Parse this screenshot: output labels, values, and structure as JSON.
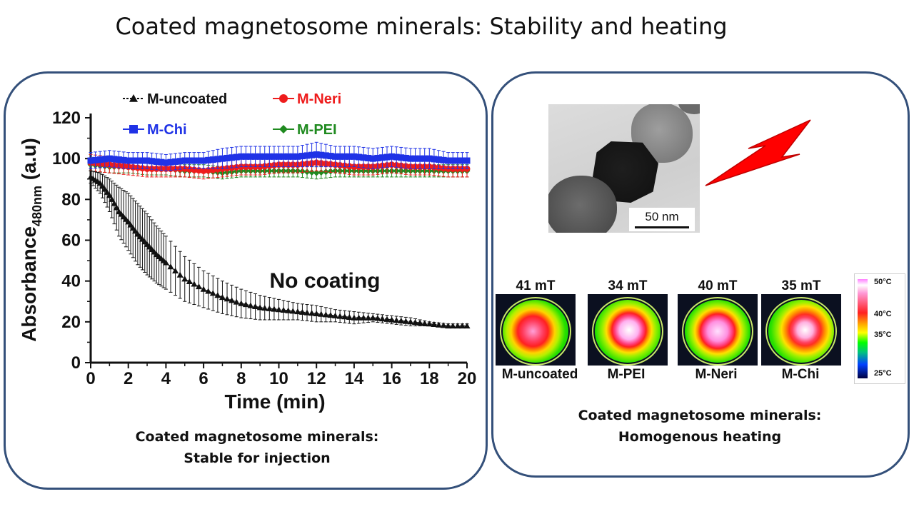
{
  "title": "Coated magnetosome minerals:  Stability and heating",
  "left_panel": {
    "annotation": "No coating",
    "caption_line1": "Coated magnetosome minerals:",
    "caption_line2": "Stable for injection"
  },
  "right_panel": {
    "scale_bar": "50 nm",
    "caption_line1": "Coated magnetosome minerals:",
    "caption_line2": "Homogenous heating",
    "thermal_images": [
      {
        "field": "41 mT",
        "sample": "M-uncoated"
      },
      {
        "field": "34 mT",
        "sample": "M-PEI"
      },
      {
        "field": "40 mT",
        "sample": "M-Neri"
      },
      {
        "field": "35 mT",
        "sample": "M-Chi"
      }
    ],
    "colorbar_labels": [
      "50°C",
      "40°C",
      "35°C",
      "25°C"
    ]
  },
  "colors": {
    "panel_border": "#34507a",
    "uncoated": "#111111",
    "neri": "#ee1c1c",
    "chi": "#1f32e6",
    "pei": "#1f8a1f",
    "lightning": "#ff0000"
  },
  "chart_data": {
    "type": "line",
    "xlabel": "Time (min)",
    "ylabel": "Absorbance",
    "ylabel_sub": "480nm",
    "ylabel_unit": " (a.u)",
    "xlim": [
      0,
      20
    ],
    "ylim": [
      0,
      120
    ],
    "xticks": [
      0,
      2,
      4,
      6,
      8,
      10,
      12,
      14,
      16,
      18,
      20
    ],
    "yticks": [
      0,
      20,
      40,
      60,
      80,
      100,
      120
    ],
    "legend_position": "top",
    "series": [
      {
        "name": "M-uncoated",
        "color": "#111111",
        "marker": "triangle",
        "x": [
          0,
          0.5,
          1,
          1.5,
          2,
          2.5,
          3,
          3.5,
          4,
          5,
          6,
          7,
          8,
          9,
          10,
          11,
          12,
          13,
          14,
          15,
          16,
          17,
          18,
          19,
          20
        ],
        "y": [
          91,
          88,
          82,
          74,
          69,
          63,
          58,
          53,
          49,
          41,
          36,
          32,
          29,
          27,
          26,
          25,
          24,
          23,
          22,
          22,
          21,
          20,
          19,
          18,
          18
        ],
        "err": [
          3,
          5,
          8,
          12,
          14,
          15,
          15,
          14,
          13,
          11,
          9,
          8,
          7,
          6,
          5,
          4,
          4,
          3,
          3,
          2,
          2,
          2,
          1,
          1,
          1
        ]
      },
      {
        "name": "M-Neri",
        "color": "#ee1c1c",
        "marker": "circle",
        "x": [
          0,
          1,
          2,
          3,
          4,
          5,
          6,
          7,
          8,
          9,
          10,
          11,
          12,
          13,
          14,
          15,
          16,
          17,
          18,
          19,
          20
        ],
        "y": [
          98,
          97,
          96,
          95,
          95,
          95,
          94,
          95,
          96,
          96,
          97,
          97,
          98,
          97,
          96,
          96,
          97,
          96,
          96,
          95,
          95
        ],
        "err": [
          4,
          4,
          4,
          4,
          4,
          4,
          4,
          4,
          4,
          4,
          4,
          4,
          4,
          4,
          4,
          4,
          4,
          4,
          4,
          4,
          4
        ]
      },
      {
        "name": "M-Chi",
        "color": "#1f32e6",
        "marker": "square",
        "x": [
          0,
          1,
          2,
          3,
          4,
          5,
          6,
          7,
          8,
          9,
          10,
          11,
          12,
          13,
          14,
          15,
          16,
          17,
          18,
          19,
          20
        ],
        "y": [
          99,
          100,
          99,
          99,
          98,
          99,
          99,
          100,
          101,
          101,
          101,
          101,
          102,
          101,
          101,
          100,
          101,
          100,
          100,
          99,
          99
        ],
        "err": [
          4,
          4,
          4,
          4,
          4,
          4,
          4,
          5,
          5,
          5,
          5,
          5,
          6,
          5,
          5,
          5,
          5,
          5,
          5,
          4,
          4
        ]
      },
      {
        "name": "M-PEI",
        "color": "#1f8a1f",
        "marker": "diamond",
        "x": [
          0,
          1,
          2,
          3,
          4,
          5,
          6,
          7,
          8,
          9,
          10,
          11,
          12,
          13,
          14,
          15,
          16,
          17,
          18,
          19,
          20
        ],
        "y": [
          97,
          96,
          96,
          95,
          95,
          94,
          94,
          93,
          94,
          94,
          94,
          94,
          93,
          94,
          94,
          94,
          94,
          94,
          94,
          94,
          94
        ],
        "err": [
          3,
          3,
          3,
          3,
          3,
          3,
          3,
          3,
          3,
          3,
          3,
          3,
          3,
          3,
          3,
          3,
          3,
          3,
          3,
          3,
          3
        ]
      }
    ]
  }
}
